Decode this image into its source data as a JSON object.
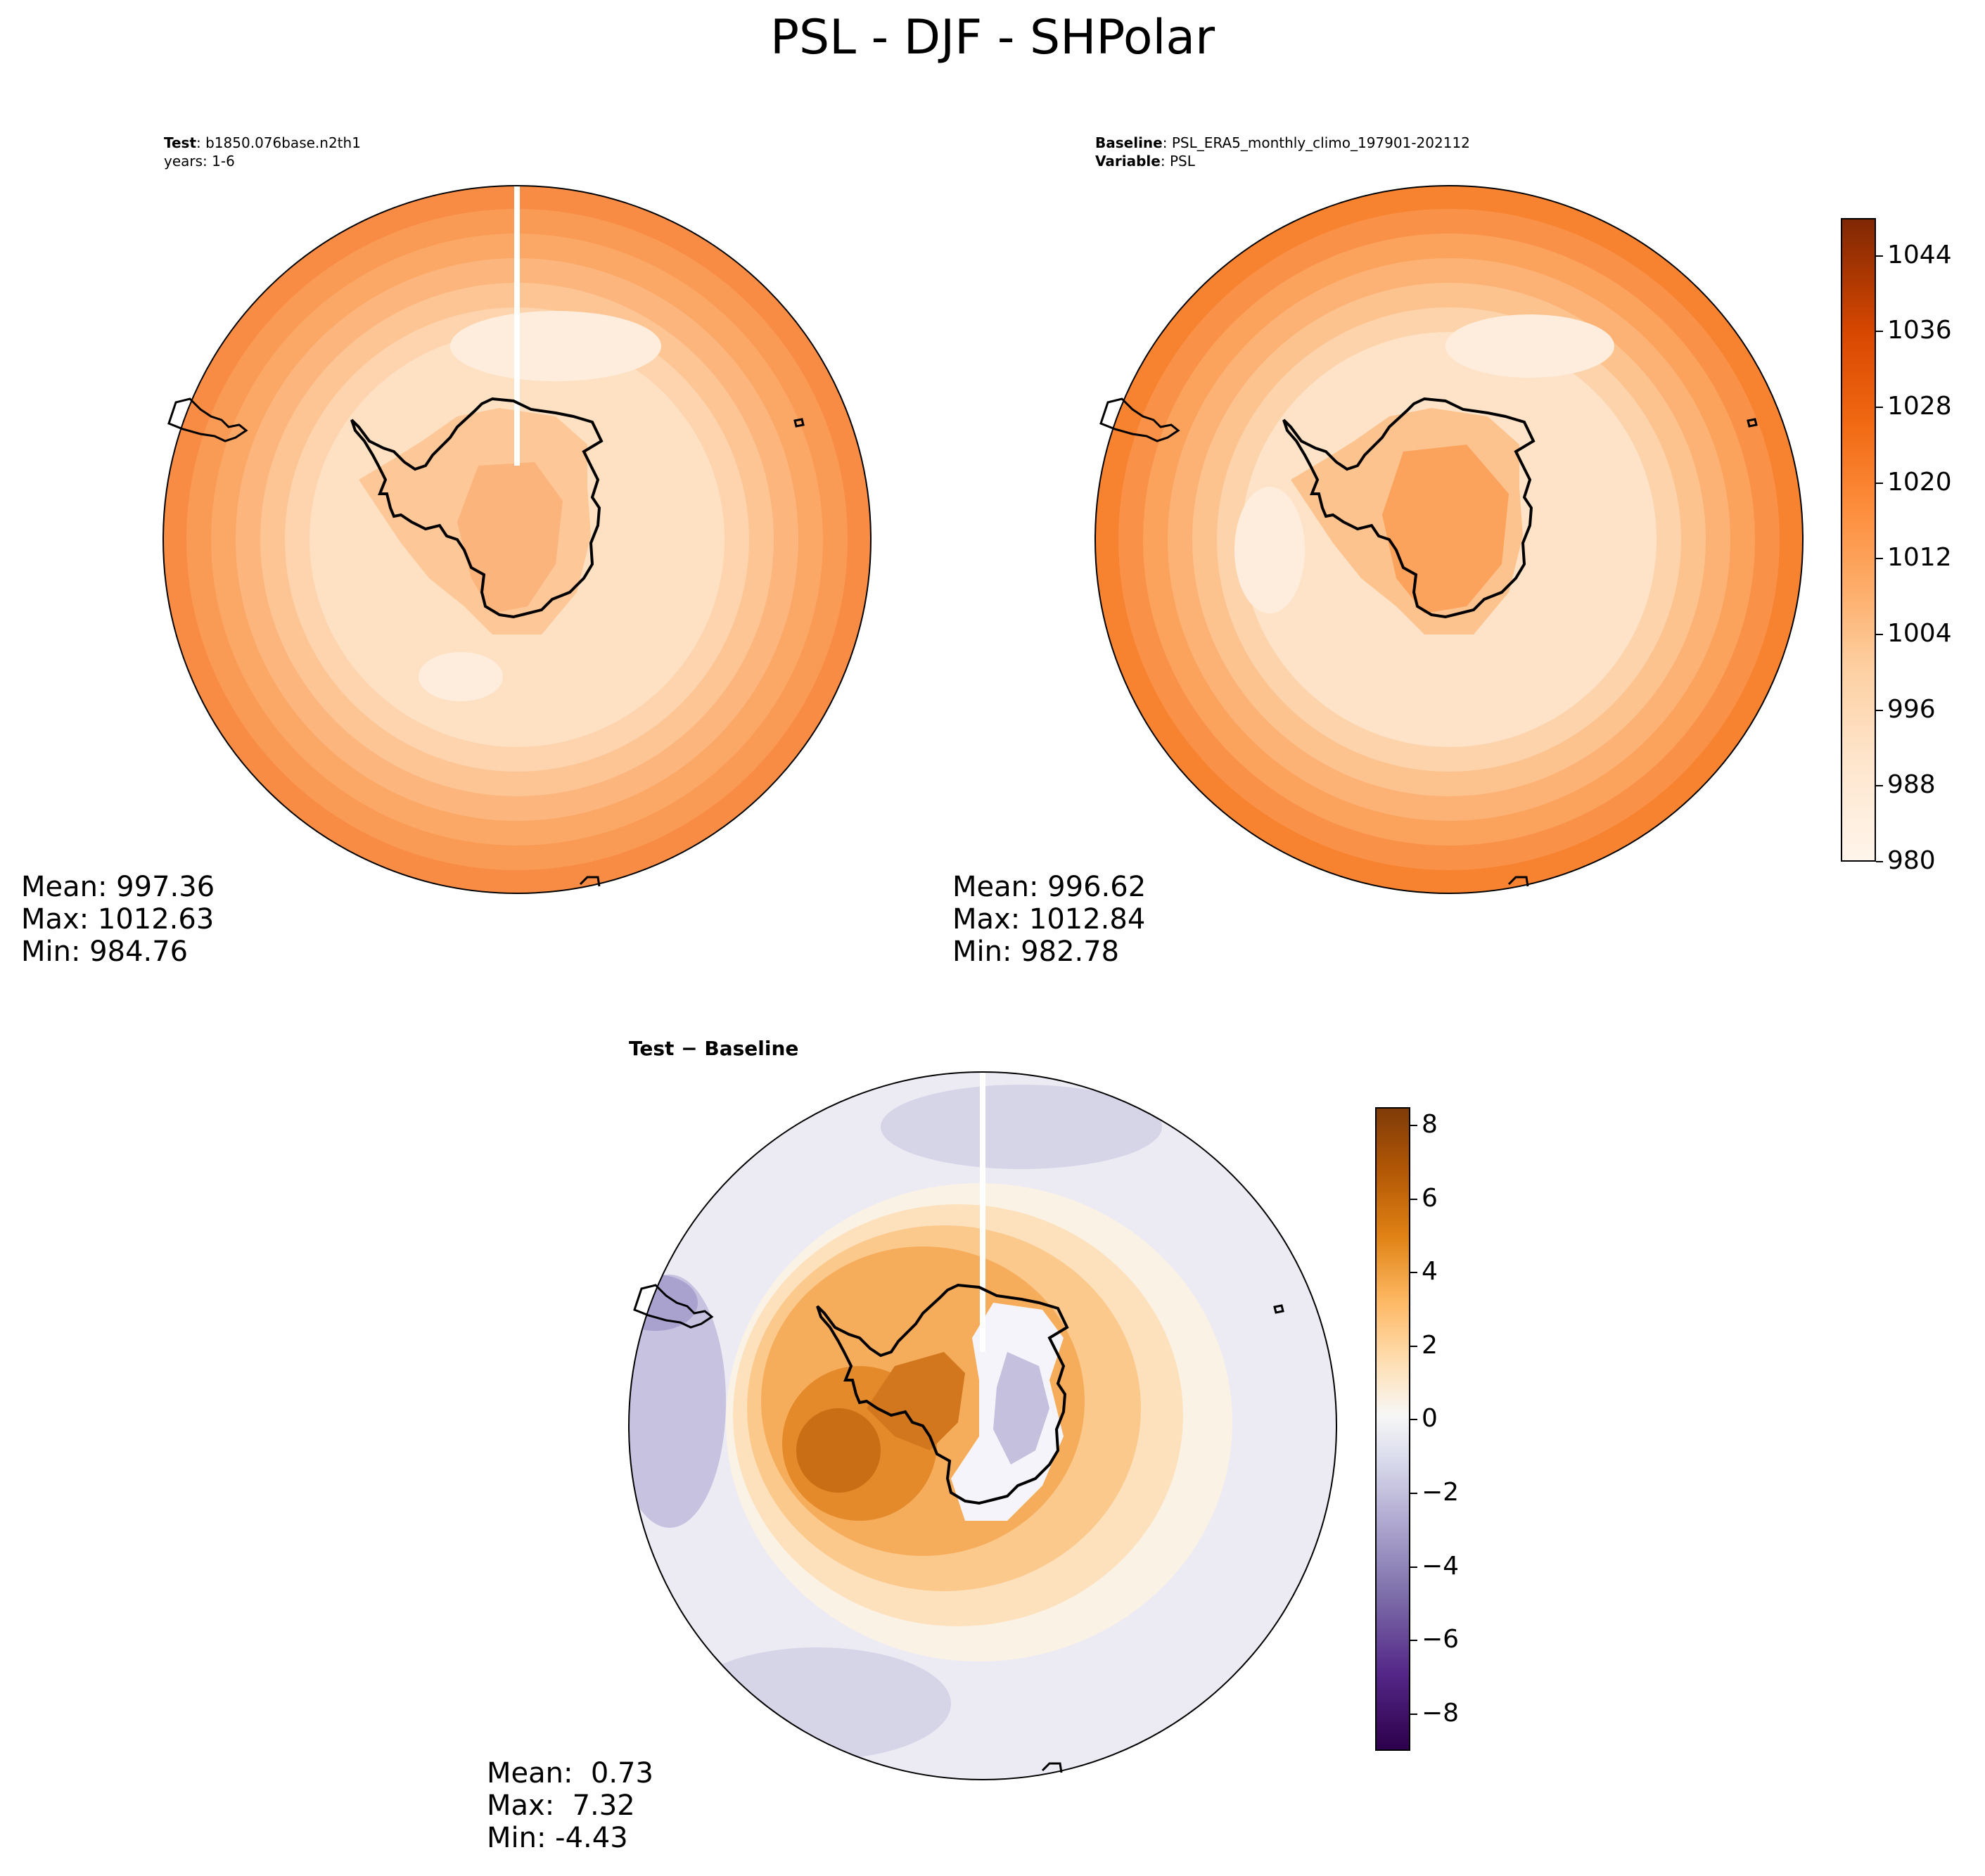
{
  "title": "PSL - DJF - SHPolar",
  "test_panel": {
    "label_bold": "Test",
    "label_value": ": b1850.076base.n2th1",
    "years": "years: 1-6",
    "mean": "Mean: 997.36",
    "max": "Max: 1012.63",
    "min": "Min: 984.76"
  },
  "baseline_panel": {
    "label_bold": "Baseline",
    "label_value": ": PSL_ERA5_monthly_climo_197901-202112",
    "variable_bold": "Variable",
    "variable_value": ": PSL",
    "mean": "Mean: 996.62",
    "max": "Max: 1012.84",
    "min": "Min: 982.78"
  },
  "diff_panel": {
    "title": "Test − Baseline",
    "mean": "Mean:  0.73",
    "max": "Max:  7.32",
    "min": "Min: -4.43"
  },
  "colorbar_psl": {
    "ticks": [
      "1044",
      "1036",
      "1028",
      "1020",
      "1012",
      "1004",
      "996",
      "988",
      "980"
    ],
    "colors": [
      "#7f2704",
      "#d94801",
      "#f16913",
      "#fd8d3c",
      "#fdae6b",
      "#fdd0a2",
      "#fee6ce",
      "#fff5eb"
    ]
  },
  "colorbar_diff": {
    "ticks": [
      "8",
      "6",
      "4",
      "2",
      "0",
      "−2",
      "−4",
      "−6",
      "−8"
    ],
    "colors": [
      "#7f3b08",
      "#b35806",
      "#e08214",
      "#fdb863",
      "#fee0b6",
      "#f7f7f7",
      "#d8daeb",
      "#b2abd2",
      "#8073ac",
      "#542788",
      "#2d004b"
    ]
  },
  "chart_data": [
    {
      "type": "heatmap",
      "title": "Test",
      "subtitle": "b1850.076base.n2th1, years: 1-6",
      "variable": "PSL",
      "projection": "south polar stereographic",
      "stats": {
        "mean": 997.36,
        "max": 1012.63,
        "min": 984.76
      },
      "colorbar": {
        "min": 980,
        "max": 1048,
        "ticks": [
          980,
          988,
          996,
          1004,
          1012,
          1020,
          1028,
          1036,
          1044
        ],
        "cmap": "Oranges"
      }
    },
    {
      "type": "heatmap",
      "title": "Baseline",
      "subtitle": "PSL_ERA5_monthly_climo_197901-202112",
      "variable": "PSL",
      "projection": "south polar stereographic",
      "stats": {
        "mean": 996.62,
        "max": 1012.84,
        "min": 982.78
      },
      "colorbar": {
        "min": 980,
        "max": 1048,
        "ticks": [
          980,
          988,
          996,
          1004,
          1012,
          1020,
          1028,
          1036,
          1044
        ],
        "cmap": "Oranges"
      }
    },
    {
      "type": "heatmap",
      "title": "Test − Baseline",
      "variable": "PSL",
      "projection": "south polar stereographic",
      "stats": {
        "mean": 0.73,
        "max": 7.32,
        "min": -4.43
      },
      "colorbar": {
        "min": -9,
        "max": 8.5,
        "ticks": [
          -8,
          -6,
          -4,
          -2,
          0,
          2,
          4,
          6,
          8
        ],
        "cmap": "PuOr_r"
      }
    }
  ]
}
